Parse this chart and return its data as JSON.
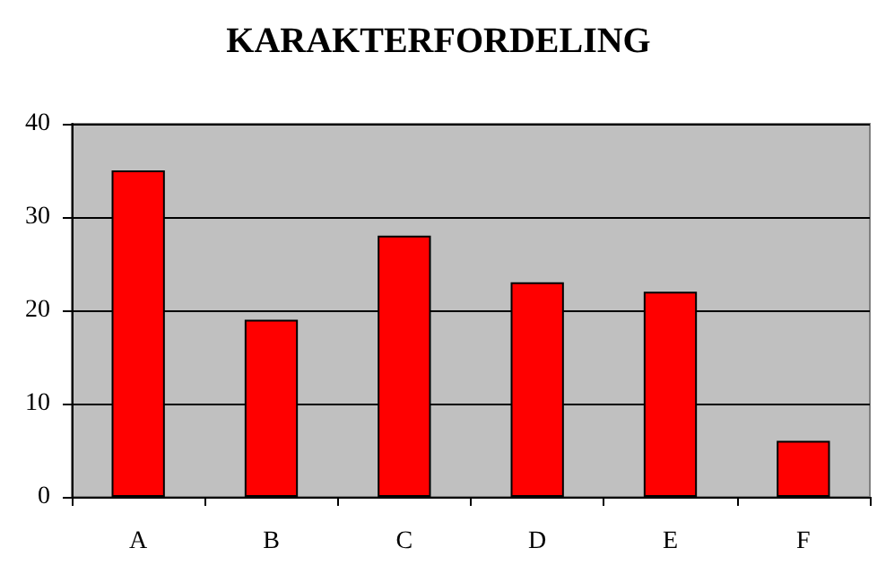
{
  "chart_data": {
    "type": "bar",
    "title": "KARAKTERFORDELING",
    "categories": [
      "A",
      "B",
      "C",
      "D",
      "E",
      "F"
    ],
    "values": [
      35,
      19,
      28,
      23,
      22,
      6
    ],
    "color": "#ff0000",
    "ylim": [
      0,
      40
    ],
    "yticks": [
      0,
      10,
      20,
      30,
      40
    ],
    "grid": "y"
  }
}
